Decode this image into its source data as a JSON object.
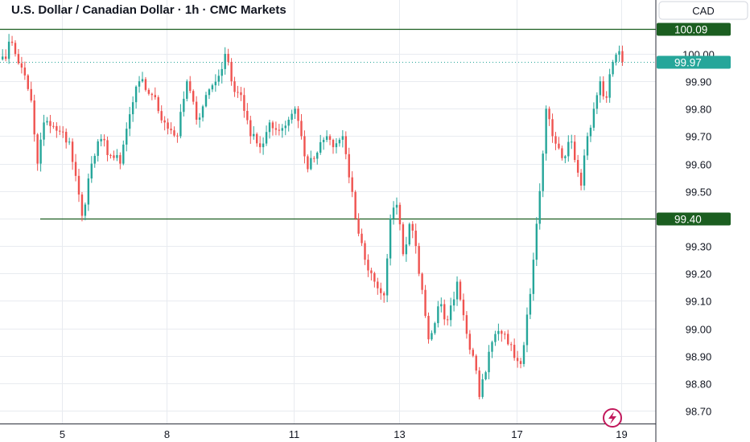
{
  "header": {
    "title": "U.S. Dollar / Canadian Dollar · 1h · CMC Markets",
    "currency_badge": "CAD"
  },
  "colors": {
    "up": "#26a69a",
    "down": "#ef5350",
    "level_line": "#1b5e20",
    "current_price": "#26a69a",
    "grid": "#e8ebf0",
    "logo": "#c2185b"
  },
  "logo": {
    "icon": "bolt-icon"
  },
  "chart_data": {
    "type": "candlestick",
    "title": "U.S. Dollar / Canadian Dollar · 1h · CMC Markets",
    "y_axis": {
      "ticks": [
        100.0,
        99.9,
        99.8,
        99.7,
        99.6,
        99.5,
        99.4,
        99.3,
        99.2,
        99.1,
        99.0,
        98.9,
        98.8,
        98.7
      ],
      "tick_labels": [
        "100.00",
        "99.90",
        "99.80",
        "99.70",
        "99.60",
        "99.50",
        "99.40",
        "99.30",
        "99.20",
        "99.10",
        "99.00",
        "98.90",
        "98.80",
        "98.70"
      ],
      "range": [
        98.65,
        100.15
      ]
    },
    "x_axis": {
      "labels": [
        "5",
        "8",
        "11",
        "13",
        "17",
        "19"
      ],
      "label_candle_index": [
        19,
        52,
        92,
        125,
        162,
        195
      ]
    },
    "levels": [
      {
        "value": 100.09,
        "label": "100.09"
      },
      {
        "value": 99.4,
        "label": "99.40"
      }
    ],
    "current_price": {
      "value": 99.97,
      "label": "99.97"
    },
    "path_points": [
      [
        0,
        99.99
      ],
      [
        3,
        100.04
      ],
      [
        6,
        99.95
      ],
      [
        9,
        99.83
      ],
      [
        11,
        99.6
      ],
      [
        13,
        99.75
      ],
      [
        17,
        99.72
      ],
      [
        21,
        99.68
      ],
      [
        25,
        99.41
      ],
      [
        28,
        99.6
      ],
      [
        31,
        99.69
      ],
      [
        34,
        99.63
      ],
      [
        37,
        99.6
      ],
      [
        40,
        99.78
      ],
      [
        43,
        99.9
      ],
      [
        47,
        99.85
      ],
      [
        51,
        99.75
      ],
      [
        55,
        99.7
      ],
      [
        58,
        99.9
      ],
      [
        61,
        99.76
      ],
      [
        64,
        99.85
      ],
      [
        68,
        99.92
      ],
      [
        70,
        100.0
      ],
      [
        72,
        99.9
      ],
      [
        75,
        99.85
      ],
      [
        78,
        99.7
      ],
      [
        81,
        99.66
      ],
      [
        84,
        99.75
      ],
      [
        87,
        99.72
      ],
      [
        90,
        99.76
      ],
      [
        92,
        99.8
      ],
      [
        94,
        99.7
      ],
      [
        96,
        99.58
      ],
      [
        99,
        99.64
      ],
      [
        102,
        99.7
      ],
      [
        104,
        99.66
      ],
      [
        107,
        99.7
      ],
      [
        109,
        99.55
      ],
      [
        111,
        99.4
      ],
      [
        114,
        99.25
      ],
      [
        117,
        99.17
      ],
      [
        120,
        99.12
      ],
      [
        122,
        99.4
      ],
      [
        124,
        99.45
      ],
      [
        126,
        99.27
      ],
      [
        128,
        99.38
      ],
      [
        130,
        99.3
      ],
      [
        132,
        99.14
      ],
      [
        134,
        98.96
      ],
      [
        137,
        99.08
      ],
      [
        140,
        99.03
      ],
      [
        143,
        99.17
      ],
      [
        146,
        98.98
      ],
      [
        148,
        98.9
      ],
      [
        150,
        98.75
      ],
      [
        152,
        98.84
      ],
      [
        154,
        98.95
      ],
      [
        157,
        98.98
      ],
      [
        160,
        98.94
      ],
      [
        163,
        98.87
      ],
      [
        165,
        99.05
      ],
      [
        167,
        99.25
      ],
      [
        169,
        99.5
      ],
      [
        171,
        99.8
      ],
      [
        173,
        99.7
      ],
      [
        176,
        99.62
      ],
      [
        179,
        99.68
      ],
      [
        182,
        99.52
      ],
      [
        184,
        99.7
      ],
      [
        186,
        99.8
      ],
      [
        188,
        99.9
      ],
      [
        190,
        99.84
      ],
      [
        192,
        99.97
      ],
      [
        194,
        100.01
      ],
      [
        195,
        99.97
      ]
    ],
    "grid": true,
    "legend": "none"
  }
}
